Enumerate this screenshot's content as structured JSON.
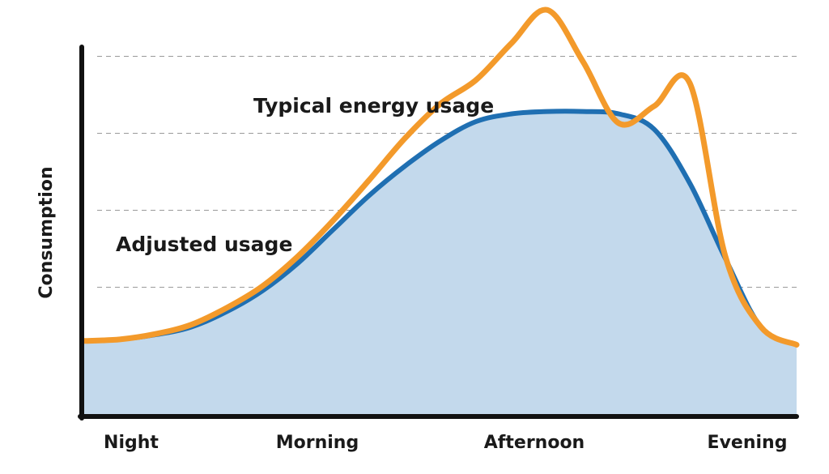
{
  "chart_data": {
    "type": "area",
    "title": "",
    "xlabel": "",
    "ylabel": "Consumption",
    "categories": [
      "Night",
      "Morning",
      "Afternoon",
      "Evening"
    ],
    "ylim": [
      0,
      4.8
    ],
    "grid": "dashed horizontal lines",
    "x": [
      0,
      0.5,
      1,
      1.5,
      2,
      2.5,
      3,
      3.5,
      4,
      4.5,
      5,
      5.5,
      6,
      6.5,
      7,
      7.5,
      8,
      8.5,
      9,
      9.5,
      10
    ],
    "series": [
      {
        "name": "Typical energy usage",
        "color": "#f39a2b",
        "values": [
          0.95,
          0.97,
          1.04,
          1.16,
          1.38,
          1.66,
          2.05,
          2.52,
          3.04,
          3.58,
          4.03,
          4.34,
          4.82,
          5.25,
          4.58,
          3.78,
          4.0,
          4.3,
          2.05,
          1.13,
          0.9
        ]
      },
      {
        "name": "Adjusted usage",
        "color": "#1f6fb2",
        "fill": "#c3d9ec",
        "values": [
          0.95,
          0.97,
          1.03,
          1.13,
          1.33,
          1.6,
          1.96,
          2.4,
          2.84,
          3.22,
          3.55,
          3.8,
          3.9,
          3.93,
          3.93,
          3.9,
          3.7,
          3.0,
          2.02,
          1.13,
          0.9
        ]
      }
    ],
    "ticks": [
      0,
      1,
      2,
      3,
      4
    ]
  },
  "colors": {
    "axis": "#111111",
    "grid": "#9a9a9a",
    "typical": "#f39a2b",
    "adjusted": "#1f6fb2",
    "adjusted_fill": "#c3d9ec"
  }
}
